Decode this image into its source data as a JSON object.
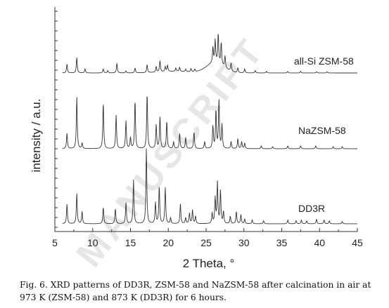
{
  "chart_data": {
    "type": "line",
    "xlabel": "2 Theta, °",
    "ylabel": "intensity / a.u.",
    "xlim": [
      5,
      45
    ],
    "xticks": [
      5,
      10,
      15,
      20,
      25,
      30,
      35,
      40,
      45
    ],
    "grid": false,
    "series": [
      {
        "name": "all-Si ZSM-58",
        "color": "#333333",
        "baseline": 0.0,
        "peaks": [
          [
            6.6,
            0.22
          ],
          [
            7.9,
            0.38
          ],
          [
            9.0,
            0.1
          ],
          [
            11.4,
            0.1
          ],
          [
            12.0,
            0.06
          ],
          [
            13.2,
            0.24
          ],
          [
            14.4,
            0.05
          ],
          [
            15.6,
            0.12
          ],
          [
            17.2,
            0.2
          ],
          [
            18.4,
            0.14
          ],
          [
            18.9,
            0.28
          ],
          [
            19.6,
            0.12
          ],
          [
            19.9,
            0.16
          ],
          [
            21.0,
            0.08
          ],
          [
            21.5,
            0.1
          ],
          [
            22.3,
            0.06
          ],
          [
            23.0,
            0.08
          ],
          [
            23.5,
            0.06
          ],
          [
            25.9,
            0.38
          ],
          [
            26.2,
            0.55
          ],
          [
            26.6,
            0.72
          ],
          [
            27.0,
            0.55
          ],
          [
            27.5,
            0.28
          ],
          [
            28.3,
            0.2
          ],
          [
            29.2,
            0.12
          ],
          [
            30.1,
            0.1
          ],
          [
            31.5,
            0.06
          ],
          [
            33.0,
            0.04
          ],
          [
            35.8,
            0.04
          ],
          [
            37.5,
            0.04
          ],
          [
            39.6,
            0.03
          ],
          [
            41.0,
            0.03
          ]
        ],
        "broad": [
          [
            26.2,
            0.25,
            1.6
          ],
          [
            21.0,
            0.04,
            3.0
          ]
        ]
      },
      {
        "name": "NaZSM-58",
        "color": "#333333",
        "baseline": 0.0,
        "peaks": [
          [
            6.6,
            0.22
          ],
          [
            7.9,
            0.74
          ],
          [
            8.6,
            0.08
          ],
          [
            11.4,
            0.66
          ],
          [
            13.1,
            0.48
          ],
          [
            14.4,
            0.4
          ],
          [
            15.0,
            0.16
          ],
          [
            15.6,
            0.7
          ],
          [
            17.2,
            0.8
          ],
          [
            18.4,
            0.34
          ],
          [
            18.9,
            0.46
          ],
          [
            19.8,
            0.4
          ],
          [
            20.7,
            0.1
          ],
          [
            21.5,
            0.22
          ],
          [
            22.3,
            0.16
          ],
          [
            23.4,
            0.24
          ],
          [
            24.8,
            0.1
          ],
          [
            25.9,
            0.32
          ],
          [
            26.3,
            0.55
          ],
          [
            26.7,
            0.7
          ],
          [
            27.1,
            0.34
          ],
          [
            28.3,
            0.1
          ],
          [
            29.2,
            0.14
          ],
          [
            29.7,
            0.1
          ],
          [
            30.1,
            0.08
          ],
          [
            32.3,
            0.04
          ],
          [
            33.8,
            0.03
          ],
          [
            35.8,
            0.04
          ],
          [
            37.5,
            0.04
          ],
          [
            39.5,
            0.04
          ],
          [
            41.8,
            0.03
          ],
          [
            43.0,
            0.03
          ]
        ],
        "broad": []
      },
      {
        "name": "DD3R",
        "color": "#333333",
        "baseline": 0.0,
        "peaks": [
          [
            6.6,
            0.26
          ],
          [
            7.9,
            0.4
          ],
          [
            8.6,
            0.16
          ],
          [
            11.4,
            0.22
          ],
          [
            13.0,
            0.2
          ],
          [
            14.4,
            0.28
          ],
          [
            15.4,
            0.58
          ],
          [
            17.1,
            1.0
          ],
          [
            18.3,
            0.28
          ],
          [
            18.8,
            0.5
          ],
          [
            19.6,
            0.48
          ],
          [
            20.3,
            0.08
          ],
          [
            21.6,
            0.26
          ],
          [
            22.3,
            0.08
          ],
          [
            22.8,
            0.14
          ],
          [
            23.2,
            0.18
          ],
          [
            23.6,
            0.1
          ],
          [
            25.8,
            0.14
          ],
          [
            26.2,
            0.34
          ],
          [
            26.5,
            0.54
          ],
          [
            26.9,
            0.44
          ],
          [
            27.3,
            0.16
          ],
          [
            28.2,
            0.1
          ],
          [
            29.0,
            0.16
          ],
          [
            29.6,
            0.12
          ],
          [
            30.1,
            0.06
          ],
          [
            31.1,
            0.05
          ],
          [
            32.6,
            0.04
          ],
          [
            35.8,
            0.05
          ],
          [
            36.9,
            0.04
          ],
          [
            37.6,
            0.05
          ],
          [
            38.3,
            0.04
          ],
          [
            39.6,
            0.06
          ],
          [
            40.6,
            0.05
          ],
          [
            41.3,
            0.04
          ],
          [
            43.0,
            0.03
          ]
        ],
        "broad": []
      }
    ]
  },
  "caption": {
    "line1": "Fig. 6. XRD patterns of DD3R, ZSM-58 and NaZSM-58 after calcination in air at",
    "line2": "973 K (ZSM-58) and 873 K (DD3R) for 6 hours."
  },
  "watermark": "MANUSCRIPT"
}
